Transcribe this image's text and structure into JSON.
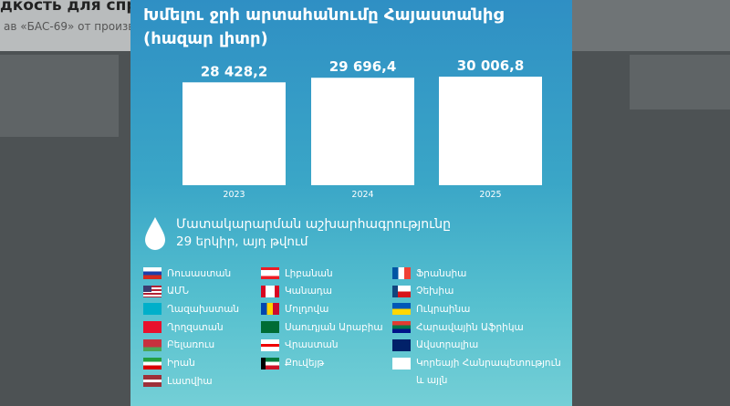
{
  "background": {
    "headline": "дкость для спр",
    "subline": "ав «БАС-69» от произве"
  },
  "chart_data": {
    "type": "bar",
    "title": "Խմելու ջրի արտահանումը Հայաստանից (հազար լիտր)",
    "categories": [
      "2023",
      "2024",
      "2025"
    ],
    "values": [
      28428.2,
      29696.4,
      30006.8
    ],
    "value_labels": [
      "28 428,2",
      "29 696,4",
      "30 006,8"
    ],
    "color": "#ffffff"
  },
  "supply": {
    "heading": "Մատակարարման աշխարհագրությունը",
    "subheading": "29 երկիր, այդ թվում",
    "countries": [
      "Ռուսաստան",
      "ԱՄՆ",
      "Ղազախստան",
      "Ղրղզստան",
      "Բելառուս",
      "Իրան",
      "Լատվիա",
      "Լիբանան",
      "Կանադա",
      "Մոլդովա",
      "Սաուդյան Արաբիա",
      "Վրաստան",
      "Քուվեյթ",
      "Ֆրանսիա",
      "Չեխիա",
      "Ուկրաինա",
      "Հարավային Աֆրիկա",
      "Ավստրալիա",
      "Կորեայի Հանրապետություն և այլն"
    ]
  }
}
